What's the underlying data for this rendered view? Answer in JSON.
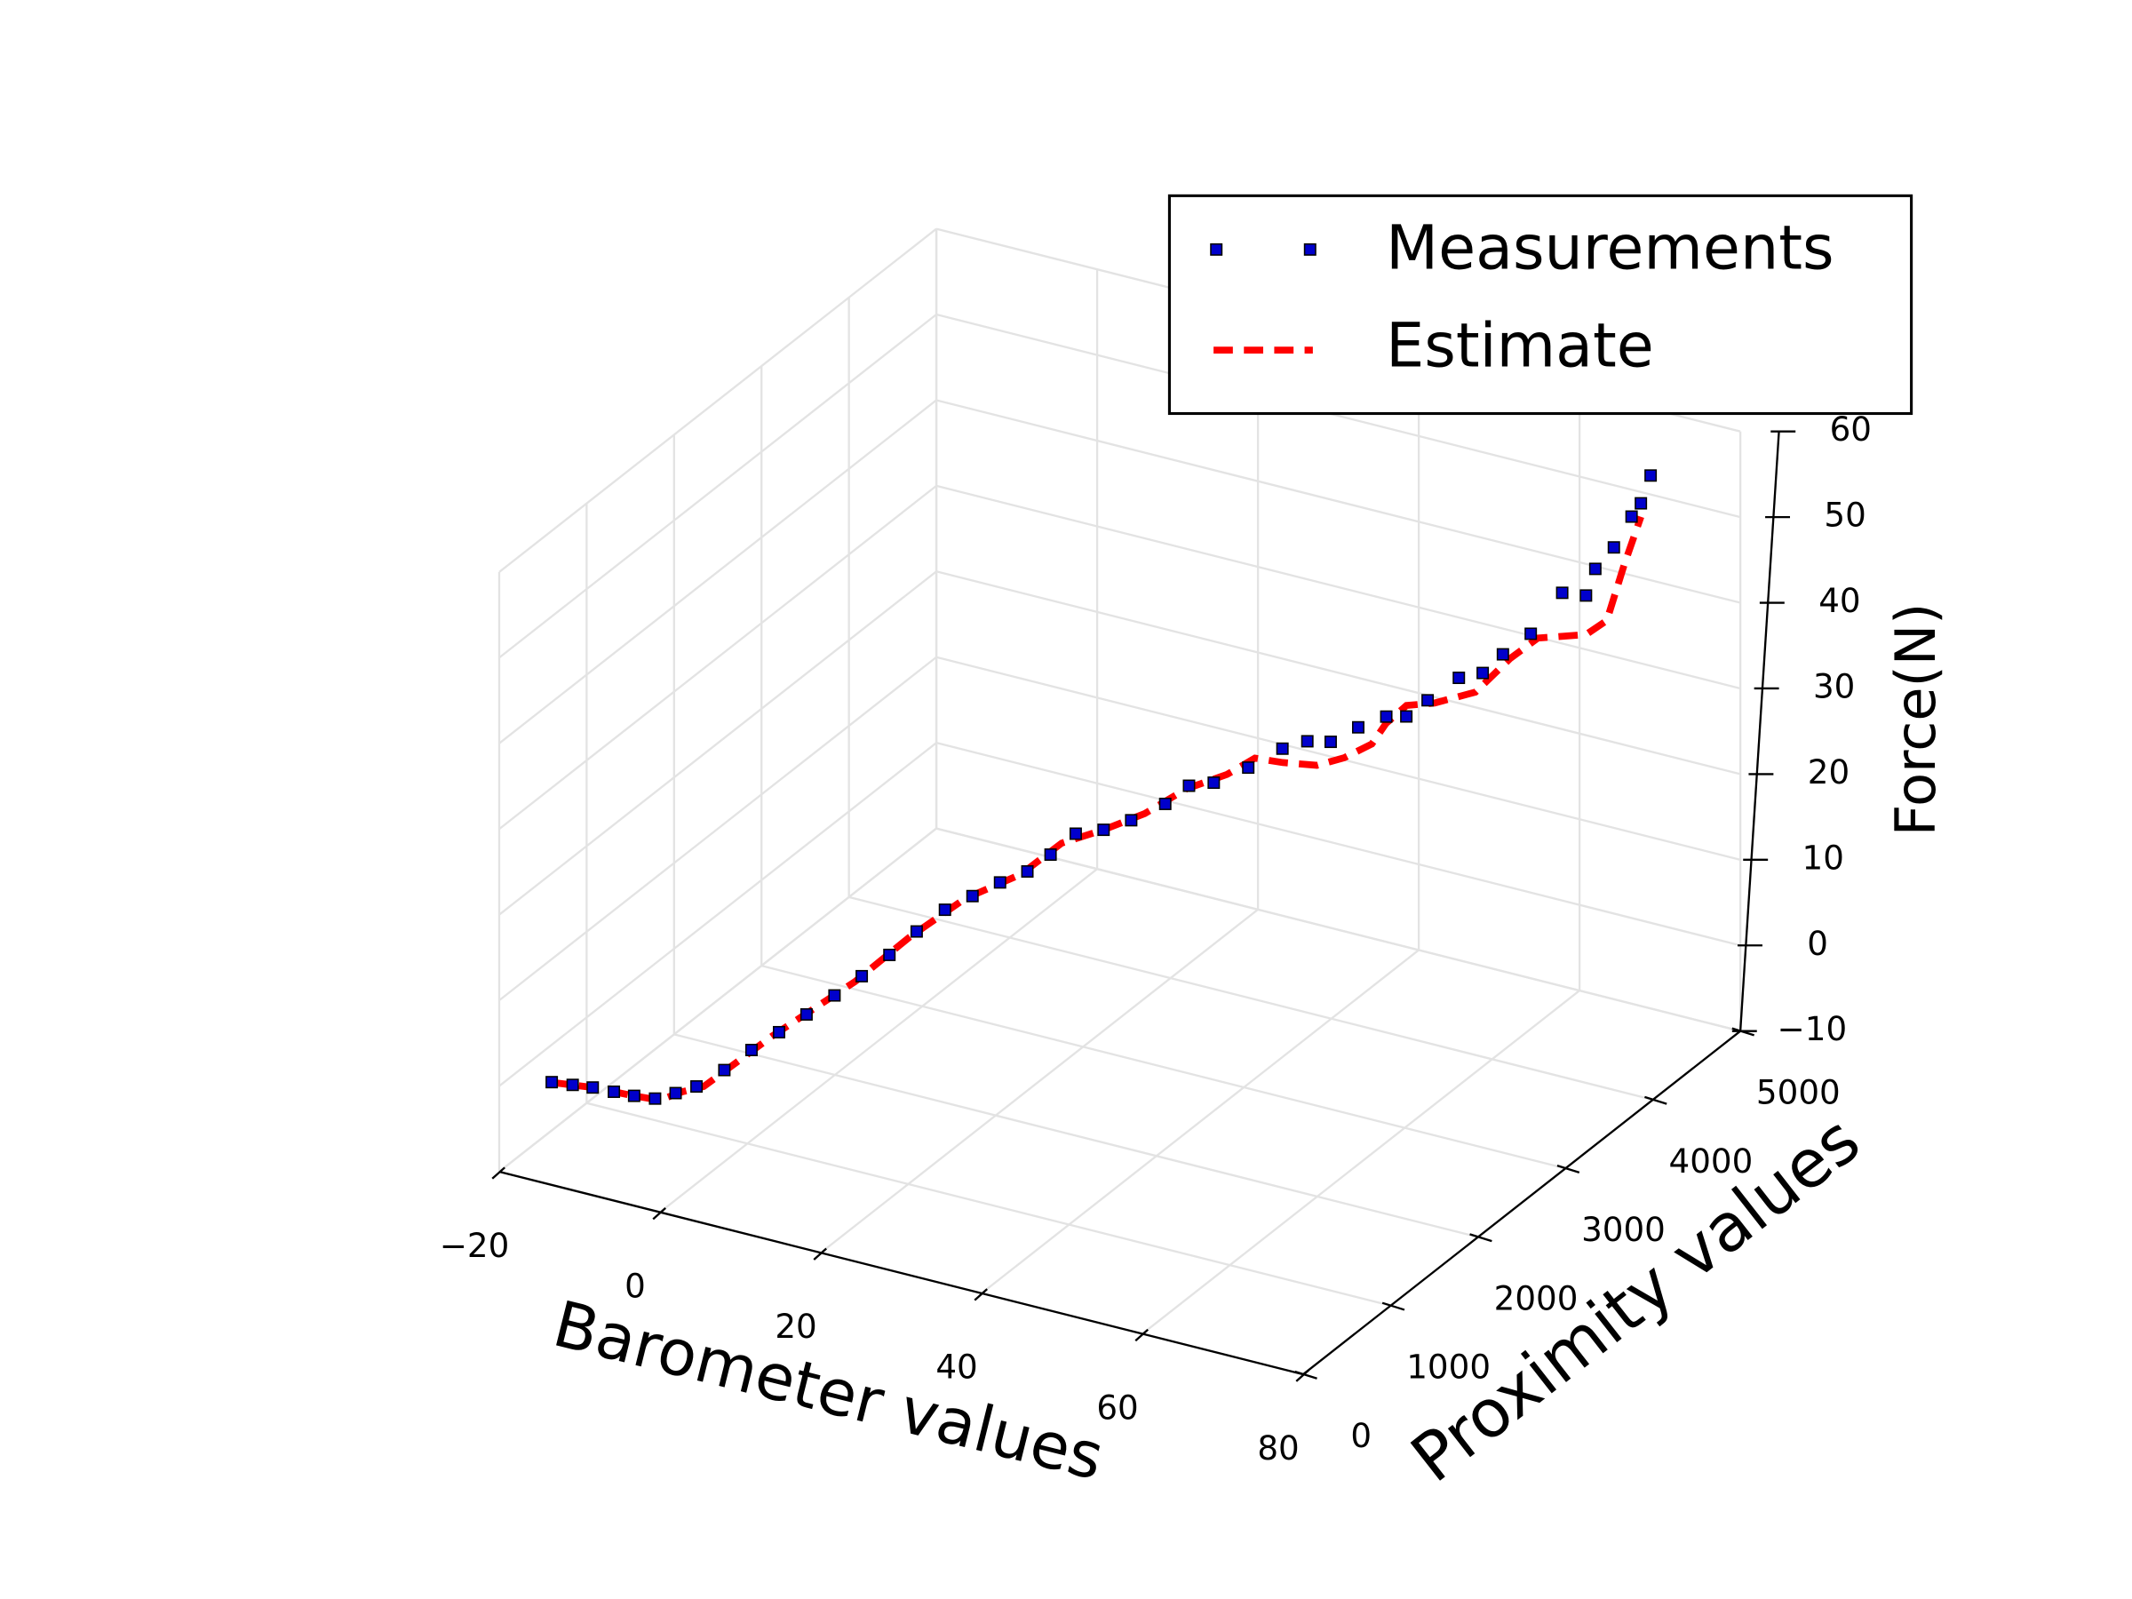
{
  "chart_data": {
    "type": "scatter3d",
    "xlabel": "Barometer values",
    "ylabel": "Proximity values",
    "zlabel": "Force(N)",
    "xlim": [
      -20,
      80
    ],
    "ylim": [
      0,
      5000
    ],
    "zlim": [
      -10,
      60
    ],
    "xticks": [
      {
        "value": -20,
        "label": "−20"
      },
      0,
      20,
      40,
      60,
      80
    ],
    "yticks": [
      0,
      1000,
      2000,
      3000,
      4000,
      5000
    ],
    "zticks": [
      {
        "value": -10,
        "label": "−10"
      },
      0,
      10,
      20,
      30,
      40,
      50,
      60
    ],
    "grid": true,
    "legend": "upper right",
    "series": [
      {
        "name": "Measurements",
        "color": "#0000cc",
        "marker": "square",
        "x": [
          -18.6,
          -16.3,
          -14.1,
          -11.6,
          -9.2,
          -6.9,
          -4.8,
          -2.4,
          -0.1,
          1.8,
          3.9,
          6.0,
          8.0,
          9.9,
          11.7,
          13.1,
          14.8,
          17.4,
          20.0,
          22.9,
          24.5,
          25.9,
          29.7,
          32.8,
          36.1,
          37.6,
          41.1,
          44.6,
          47.6,
          50.6,
          54.2,
          56.8,
          59.8,
          62.9,
          64.2,
          66.4,
          69.4,
          70.4,
          72.2,
          72.1,
          76.1,
          74.4,
          74.6,
          73.7,
          73.5,
          71.7
        ],
        "y": [
          472,
          500,
          527,
          539,
          550,
          578,
          620,
          638,
          745,
          881,
          1003,
          1124,
          1260,
          1397,
          1548,
          1731,
          1898,
          1974,
          2050,
          2096,
          2214,
          2373,
          2342,
          2373,
          2459,
          2593,
          2554,
          2627,
          2742,
          2751,
          2687,
          2763,
          2808,
          2752,
          2876,
          3031,
          3028,
          3167,
          3320,
          3689,
          3593,
          3856,
          4050,
          4335,
          4460,
          4737
        ],
        "z": [
          -3,
          -3,
          -3,
          -3,
          -3,
          -3,
          -2.2,
          -1.0,
          0.6,
          2.3,
          3.9,
          5.5,
          7.1,
          8.7,
          10.4,
          12.0,
          13.6,
          15.2,
          16.8,
          18.4,
          19.8,
          21.3,
          22.9,
          24.5,
          26.5,
          27.9,
          29.4,
          31.4,
          33.4,
          34.9,
          36.2,
          37.9,
          39.5,
          40.7,
          41.9,
          43.8,
          45.1,
          46.4,
          48.0,
          49.8,
          51.2,
          51.8,
          52.8,
          53.9,
          54.4,
          55.0
        ]
      },
      {
        "name": "Estimate",
        "color": "#ff0000",
        "linestyle": "dashed",
        "x": [
          -18.9,
          -14.1,
          -9.2,
          -6.3,
          -3.9,
          -1.3,
          3.3,
          9.5,
          12.7,
          16.6,
          22.2,
          24.9,
          29.7,
          34.1,
          37.5,
          42.2,
          44.5,
          49.3,
          54.9,
          58.3,
          60.9,
          60.6,
          61.6,
          65.6,
          70.6,
          72.0,
          73.8,
          73.4,
          75.7,
          74.8,
          74.2
        ],
        "y": [
          465,
          527,
          550,
          574,
          616,
          619,
          976,
          1355,
          1689,
          1963,
          2084,
          2304,
          2342,
          2409,
          2570,
          2606,
          2713,
          2590,
          2466,
          2465,
          2542,
          2732,
          2873,
          2827,
          2834,
          3103,
          3255,
          3843,
          3868,
          4149,
          4396
        ],
        "z": [
          -3,
          -3,
          -3,
          -3,
          -1.8,
          -0.6,
          3.5,
          8.3,
          11.6,
          14.8,
          18.0,
          20.5,
          22.9,
          25.3,
          27.7,
          30.2,
          31.8,
          33.4,
          35.4,
          37.1,
          38.7,
          39.5,
          40.7,
          42.3,
          44.7,
          46.8,
          48.4,
          44.0,
          46.0,
          50.0,
          53.5
        ]
      }
    ]
  }
}
